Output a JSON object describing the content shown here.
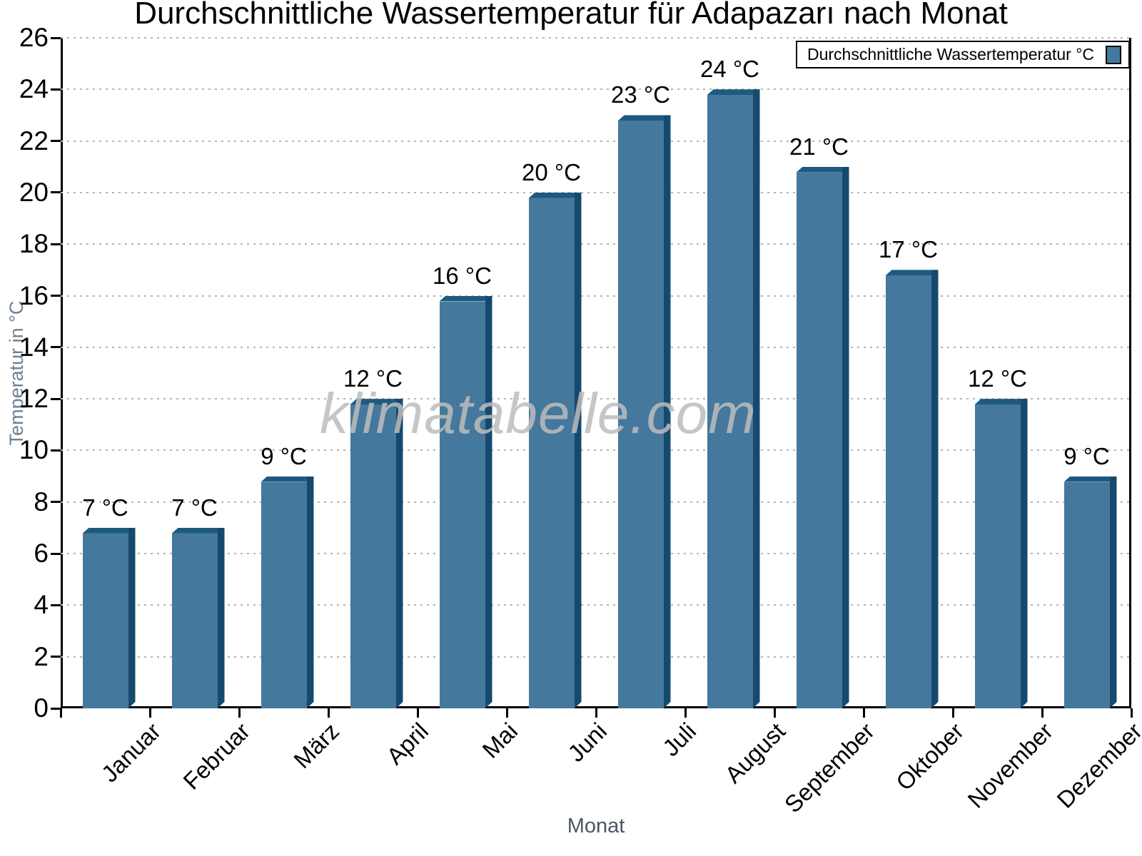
{
  "title": "Durchschnittliche Wassertemperatur für Adapazarı nach Monat",
  "watermark": "klimatabelle.com",
  "legend": {
    "label": "Durchschnittliche Wassertemperatur °C"
  },
  "axes": {
    "xlabel": "Monat",
    "ylabel": "Temperatur in °C"
  },
  "chart_data": {
    "type": "bar",
    "title": "Durchschnittliche Wassertemperatur für Adapazarı nach Monat",
    "xlabel": "Monat",
    "ylabel": "Temperatur in °C",
    "categories": [
      "Januar",
      "Februar",
      "März",
      "April",
      "Mai",
      "Juni",
      "Juli",
      "August",
      "September",
      "Oktober",
      "November",
      "Dezember"
    ],
    "values": [
      7,
      7,
      9,
      12,
      16,
      20,
      23,
      24,
      21,
      17,
      12,
      9
    ],
    "value_labels": [
      "7 °C",
      "7 °C",
      "9 °C",
      "12 °C",
      "16 °C",
      "20 °C",
      "23 °C",
      "24 °C",
      "21 °C",
      "17 °C",
      "12 °C",
      "9 °C"
    ],
    "ylim": [
      0,
      26
    ],
    "ytick_step": 2,
    "grid": "horizontal-dotted",
    "legend_entries": [
      "Durchschnittliche Wassertemperatur °C"
    ],
    "legend_position": "top-right",
    "colors": {
      "bar_face": "#44789C",
      "bar_top": "#1E5A80",
      "bar_side": "#154A6E",
      "grid": "#B4B4B4",
      "axis": "#000000",
      "ylabel_text": "#6E8090",
      "xlabel_text": "#4C5662",
      "watermark_text": "#BDBDBD"
    }
  }
}
